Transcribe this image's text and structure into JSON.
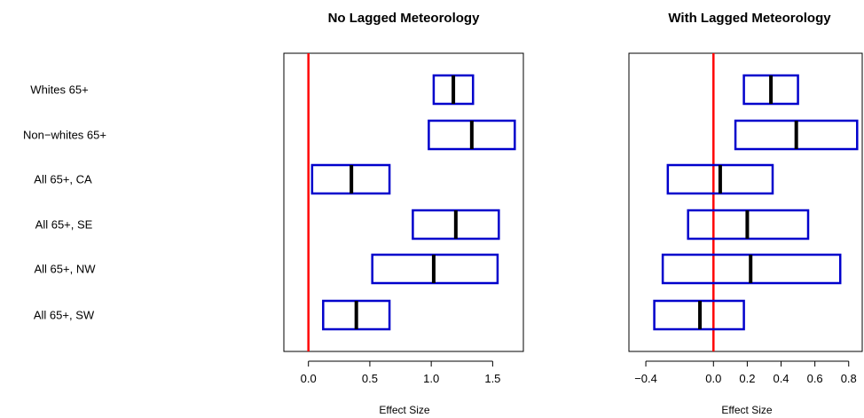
{
  "chart_data": [
    {
      "type": "box",
      "title": "No Lagged Meteorology",
      "xlabel": "Effect Size",
      "xlim": [
        -0.2,
        1.75
      ],
      "xticks": [
        0.0,
        0.5,
        1.0,
        1.5
      ],
      "xtick_labels": [
        "0.0",
        "0.5",
        "1.0",
        "1.5"
      ],
      "reference_line": 0,
      "categories": [
        "Whites 65+",
        "Non−whites 65+",
        "All 65+, CA",
        "All 65+, SE",
        "All 65+, NW",
        "All 65+, SW"
      ],
      "estimates": [
        1.18,
        1.33,
        0.35,
        1.2,
        1.02,
        0.39
      ],
      "lower": [
        1.02,
        0.98,
        0.03,
        0.85,
        0.52,
        0.12
      ],
      "upper": [
        1.34,
        1.68,
        0.66,
        1.55,
        1.54,
        0.66
      ]
    },
    {
      "type": "box",
      "title": "With Lagged Meteorology",
      "xlabel": "Effect Size",
      "xlim": [
        -0.5,
        0.88
      ],
      "xticks": [
        -0.4,
        0.0,
        0.2,
        0.4,
        0.6,
        0.8
      ],
      "xtick_labels": [
        "−0.4",
        "0.0",
        "0.2",
        "0.4",
        "0.6",
        "0.8"
      ],
      "reference_line": 0,
      "categories": [
        "Whites 65+",
        "Non−whites 65+",
        "All 65+, CA",
        "All 65+, SE",
        "All 65+, NW",
        "All 65+, SW"
      ],
      "estimates": [
        0.34,
        0.49,
        0.04,
        0.2,
        0.22,
        -0.08
      ],
      "lower": [
        0.18,
        0.13,
        -0.27,
        -0.15,
        -0.3,
        -0.35
      ],
      "upper": [
        0.5,
        0.85,
        0.35,
        0.56,
        0.75,
        0.18
      ]
    }
  ],
  "colors": {
    "box": "#0000cc",
    "estimate": "#000000",
    "reference": "#ff0000"
  },
  "row_labels": [
    "Whites 65+",
    "Non−whites 65+",
    "All 65+, CA",
    "All 65+, SE",
    "All 65+, NW",
    "All 65+, SW"
  ]
}
